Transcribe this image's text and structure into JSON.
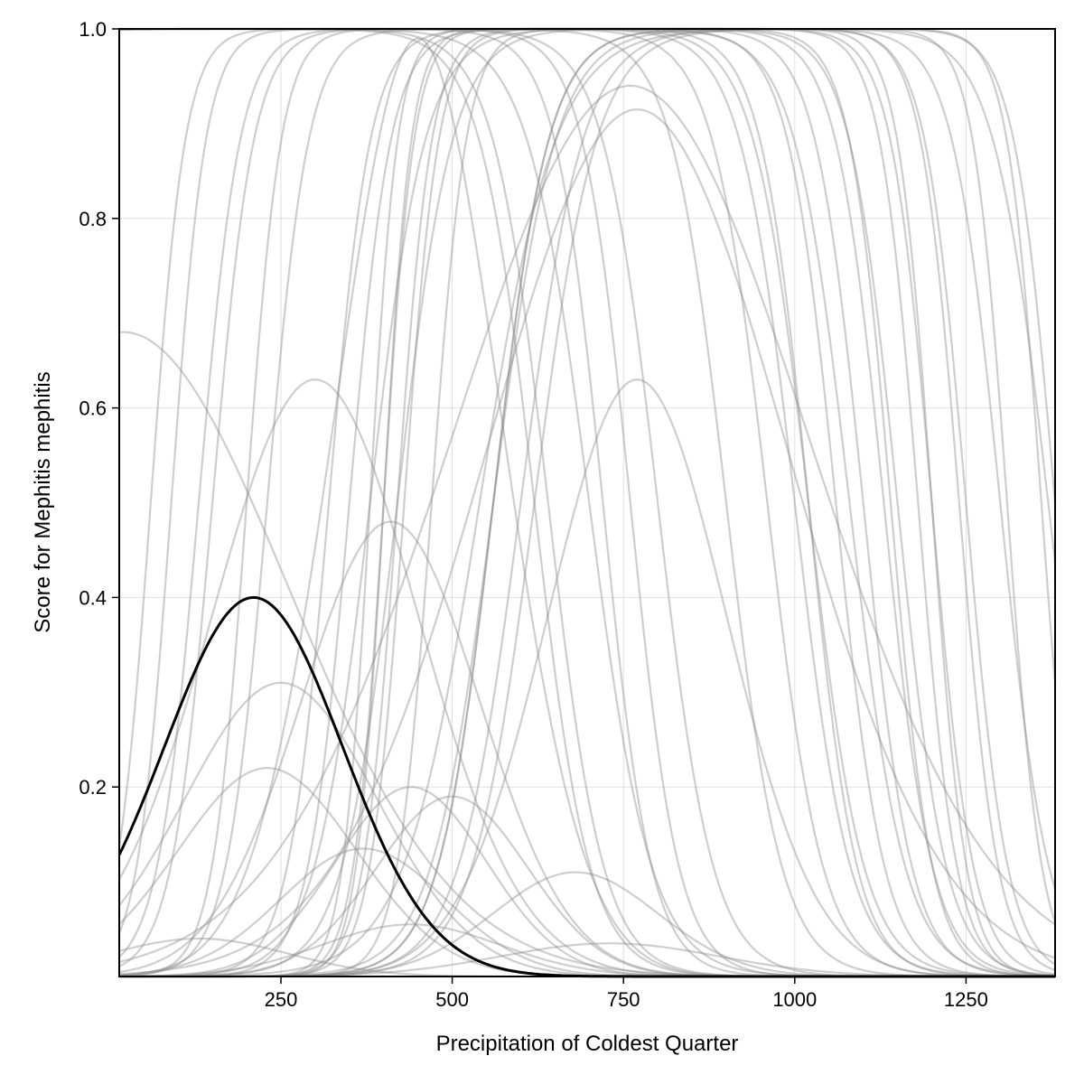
{
  "chart_data": {
    "type": "line",
    "title": "",
    "xlabel": "Precipitation of Coldest Quarter",
    "ylabel": "Score for Mephitis mephitis",
    "xlim": [
      14,
      1380
    ],
    "ylim": [
      0.0,
      1.0
    ],
    "x_ticks": [
      250,
      500,
      750,
      1000,
      1250
    ],
    "x_tick_labels": [
      "250",
      "500",
      "750",
      "1000",
      "1250"
    ],
    "y_ticks": [
      0.2,
      0.4,
      0.6,
      0.8,
      1.0
    ],
    "y_tick_labels": [
      "0.2",
      "0.4",
      "0.6",
      "0.8",
      "1.0"
    ],
    "grid": true,
    "legend": "none",
    "colors": {
      "highlight": "#000000",
      "background_curves": "#8a8a8a"
    },
    "highlight_series": {
      "shape": "bell",
      "peak_x": 210,
      "peak_y": 0.4,
      "width": 130,
      "points": [
        [
          14,
          0.18
        ],
        [
          100,
          0.31
        ],
        [
          150,
          0.37
        ],
        [
          210,
          0.4
        ],
        [
          260,
          0.39
        ],
        [
          300,
          0.35
        ],
        [
          350,
          0.28
        ],
        [
          400,
          0.19
        ],
        [
          450,
          0.11
        ],
        [
          500,
          0.05
        ],
        [
          550,
          0.02
        ],
        [
          600,
          0.005
        ],
        [
          650,
          0.001
        ],
        [
          700,
          0.0
        ]
      ]
    },
    "background_series": [
      {
        "shape": "bell",
        "peak_x": 20,
        "peak_y": 0.68,
        "width": 240
      },
      {
        "shape": "bell",
        "peak_x": 300,
        "peak_y": 0.63,
        "width": 150
      },
      {
        "shape": "bell",
        "peak_x": 770,
        "peak_y": 0.63,
        "width": 130
      },
      {
        "shape": "bell",
        "peak_x": 410,
        "peak_y": 0.48,
        "width": 130
      },
      {
        "shape": "bell",
        "peak_x": 250,
        "peak_y": 0.31,
        "width": 140
      },
      {
        "shape": "bell",
        "peak_x": 230,
        "peak_y": 0.22,
        "width": 130
      },
      {
        "shape": "bell",
        "peak_x": 440,
        "peak_y": 0.2,
        "width": 110
      },
      {
        "shape": "bell",
        "peak_x": 500,
        "peak_y": 0.19,
        "width": 110
      },
      {
        "shape": "bell",
        "peak_x": 370,
        "peak_y": 0.135,
        "width": 120
      },
      {
        "shape": "bell",
        "peak_x": 680,
        "peak_y": 0.11,
        "width": 120
      },
      {
        "shape": "bell",
        "peak_x": 440,
        "peak_y": 0.055,
        "width": 130
      },
      {
        "shape": "bell",
        "peak_x": 130,
        "peak_y": 0.04,
        "width": 130
      },
      {
        "shape": "bell",
        "peak_x": 730,
        "peak_y": 0.035,
        "width": 160
      },
      {
        "shape": "bell",
        "peak_x": 760,
        "peak_y": 0.94,
        "width": 260
      },
      {
        "shape": "bell",
        "peak_x": 770,
        "peak_y": 0.915,
        "width": 220
      },
      {
        "shape": "bell",
        "peak_x": 450,
        "peak_y": 0.99,
        "width": 120
      },
      {
        "shape": "plateau",
        "a": -250,
        "b": 640,
        "s1": 40,
        "s2": 40
      },
      {
        "shape": "plateau",
        "a": -300,
        "b": 700,
        "s1": 40,
        "s2": 45
      },
      {
        "shape": "plateau",
        "a": -300,
        "b": 800,
        "s1": 40,
        "s2": 40
      },
      {
        "shape": "plateau",
        "a": -300,
        "b": 1020,
        "s1": 40,
        "s2": 40
      },
      {
        "shape": "plateau",
        "a": 60,
        "b": 900,
        "s1": 25,
        "s2": 40
      },
      {
        "shape": "plateau",
        "a": 200,
        "b": 1080,
        "s1": 25,
        "s2": 40
      },
      {
        "shape": "plateau",
        "a": 150,
        "b": 720,
        "s1": 30,
        "s2": 35
      },
      {
        "shape": "plateau",
        "a": 230,
        "b": 760,
        "s1": 30,
        "s2": 35
      },
      {
        "shape": "plateau",
        "a": 380,
        "b": 1130,
        "s1": 20,
        "s2": 35
      },
      {
        "shape": "plateau",
        "a": 400,
        "b": 1200,
        "s1": 20,
        "s2": 30
      },
      {
        "shape": "plateau",
        "a": 400,
        "b": 1250,
        "s1": 22,
        "s2": 30
      },
      {
        "shape": "plateau",
        "a": 560,
        "b": 1150,
        "s1": 45,
        "s2": 35
      },
      {
        "shape": "plateau",
        "a": 560,
        "b": 1180,
        "s1": 40,
        "s2": 28
      },
      {
        "shape": "plateau",
        "a": 560,
        "b": 1060,
        "s1": 40,
        "s2": 35
      },
      {
        "shape": "plateau",
        "a": 600,
        "b": 1240,
        "s1": 45,
        "s2": 28
      },
      {
        "shape": "plateau",
        "a": 620,
        "b": 1310,
        "s1": 45,
        "s2": 25
      },
      {
        "shape": "plateau",
        "a": 540,
        "b": 1360,
        "s1": 55,
        "s2": 25
      },
      {
        "shape": "plateau",
        "a": 420,
        "b": 1000,
        "s1": 25,
        "s2": 40
      },
      {
        "shape": "plateau",
        "a": 430,
        "b": 1100,
        "s1": 25,
        "s2": 35
      },
      {
        "shape": "plateau",
        "a": 470,
        "b": 1140,
        "s1": 25,
        "s2": 30
      },
      {
        "shape": "plateau",
        "a": 350,
        "b": 960,
        "s1": 30,
        "s2": 40
      },
      {
        "shape": "plateau",
        "a": 90,
        "b": 620,
        "s1": 25,
        "s2": 40
      },
      {
        "shape": "plateau",
        "a": 130,
        "b": 1020,
        "s1": 30,
        "s2": 35
      },
      {
        "shape": "plateau",
        "a": 320,
        "b": 1200,
        "s1": 30,
        "s2": 25
      },
      {
        "shape": "plateau",
        "a": 380,
        "b": 1300,
        "s1": 40,
        "s2": 35
      },
      {
        "shape": "plateau",
        "a": 420,
        "b": 1380,
        "s1": 40,
        "s2": 30
      },
      {
        "shape": "sigmoid_down",
        "center": 1370,
        "scale": 40
      }
    ]
  }
}
